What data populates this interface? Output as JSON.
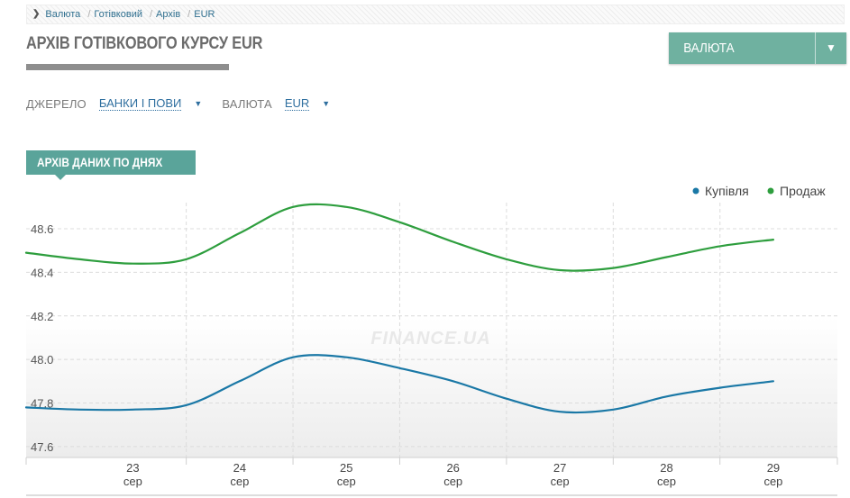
{
  "breadcrumb": {
    "items": [
      "Валюта",
      "Готівковий",
      "Архів",
      "EUR"
    ]
  },
  "page": {
    "title": "АРХІВ ГОТІВКОВОГО КУРСУ EUR"
  },
  "currency_button": {
    "label": "ВАЛЮТА",
    "caret": "▼"
  },
  "filters": {
    "source_label": "ДЖЕРЕЛО",
    "source_value": "БАНКИ І ПОВИ",
    "currency_label": "ВАЛЮТА",
    "currency_value": "EUR",
    "caret": "▼"
  },
  "section": {
    "tab_label": "АРХІВ ДАНИХ ПО ДНЯХ"
  },
  "watermark": "FINANCE.UA",
  "colors": {
    "buy": "#1a78a6",
    "sell": "#2e9e3e",
    "accent": "#6fb1a0"
  },
  "chart_data": {
    "type": "line",
    "title": "",
    "xlabel": "",
    "ylabel": "",
    "x": [
      23,
      24,
      25,
      26,
      27,
      28,
      29
    ],
    "x_tick_labels": [
      {
        "day": "23",
        "month": "сер"
      },
      {
        "day": "24",
        "month": "сер"
      },
      {
        "day": "25",
        "month": "сер"
      },
      {
        "day": "26",
        "month": "сер"
      },
      {
        "day": "27",
        "month": "сер"
      },
      {
        "day": "28",
        "month": "сер"
      },
      {
        "day": "29",
        "month": "сер"
      }
    ],
    "xlim": [
      22.0,
      29.6
    ],
    "ylim": [
      47.55,
      48.72
    ],
    "y_ticks": [
      47.6,
      47.8,
      48.0,
      48.2,
      48.4,
      48.6
    ],
    "y_tick_labels": [
      "47.6",
      "47.8",
      "48.0",
      "48.2",
      "48.4",
      "48.6"
    ],
    "grid": true,
    "legend_position": "top-right",
    "series": [
      {
        "name": "Купівля",
        "points": [
          [
            22.0,
            47.78
          ],
          [
            22.5,
            47.77
          ],
          [
            23.0,
            47.77
          ],
          [
            23.5,
            47.79
          ],
          [
            24.0,
            47.9
          ],
          [
            24.5,
            48.01
          ],
          [
            25.0,
            48.01
          ],
          [
            25.5,
            47.96
          ],
          [
            26.0,
            47.9
          ],
          [
            26.5,
            47.82
          ],
          [
            27.0,
            47.76
          ],
          [
            27.5,
            47.77
          ],
          [
            28.0,
            47.83
          ],
          [
            28.5,
            47.87
          ],
          [
            29.0,
            47.9
          ]
        ]
      },
      {
        "name": "Продаж",
        "points": [
          [
            22.0,
            48.49
          ],
          [
            22.5,
            48.46
          ],
          [
            23.0,
            48.44
          ],
          [
            23.5,
            48.46
          ],
          [
            24.0,
            48.58
          ],
          [
            24.5,
            48.7
          ],
          [
            25.0,
            48.7
          ],
          [
            25.5,
            48.63
          ],
          [
            26.0,
            48.54
          ],
          [
            26.5,
            48.46
          ],
          [
            27.0,
            48.41
          ],
          [
            27.5,
            48.42
          ],
          [
            28.0,
            48.47
          ],
          [
            28.5,
            48.52
          ],
          [
            29.0,
            48.55
          ]
        ]
      }
    ]
  }
}
